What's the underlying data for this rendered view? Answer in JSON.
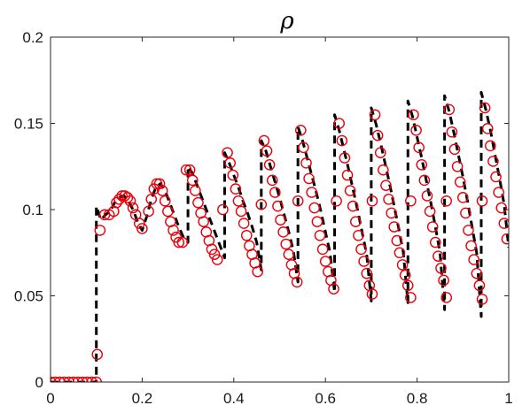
{
  "chart_data": {
    "type": "line",
    "title": "ρ",
    "xlabel": "",
    "ylabel": "",
    "xlim": [
      0,
      1
    ],
    "ylim": [
      0,
      0.2
    ],
    "x_ticks": [
      0,
      0.2,
      0.4,
      0.6,
      0.8,
      1
    ],
    "x_tick_labels": [
      "0",
      "0.2",
      "0.4",
      "0.6",
      "0.8",
      "1"
    ],
    "y_ticks": [
      0,
      0.05,
      0.1,
      0.15,
      0.2
    ],
    "y_tick_labels": [
      "0",
      "0.05",
      "0.1",
      "0.15",
      "0.2"
    ],
    "grid": false,
    "legend": "none",
    "colors": {
      "reference_line": "#000000",
      "markers": "#e8000b",
      "axes": "#262626"
    },
    "series": [
      {
        "style": "dashed line",
        "points": [
          [
            0.0,
            0.0
          ],
          [
            0.02,
            0.0
          ],
          [
            0.04,
            0.0
          ],
          [
            0.06,
            0.0
          ],
          [
            0.08,
            0.0
          ],
          [
            0.1,
            0.0
          ],
          [
            0.1,
            0.102
          ],
          [
            0.11,
            0.094
          ],
          [
            0.12,
            0.097
          ],
          [
            0.13,
            0.099
          ],
          [
            0.14,
            0.104
          ],
          [
            0.15,
            0.107
          ],
          [
            0.16,
            0.108
          ],
          [
            0.17,
            0.105
          ],
          [
            0.18,
            0.1
          ],
          [
            0.19,
            0.093
          ],
          [
            0.2,
            0.088
          ],
          [
            0.21,
            0.096
          ],
          [
            0.22,
            0.106
          ],
          [
            0.23,
            0.113
          ],
          [
            0.24,
            0.115
          ],
          [
            0.25,
            0.111
          ],
          [
            0.26,
            0.104
          ],
          [
            0.27,
            0.097
          ],
          [
            0.28,
            0.09
          ],
          [
            0.29,
            0.084
          ],
          [
            0.3,
            0.081
          ],
          [
            0.3,
            0.125
          ],
          [
            0.31,
            0.121
          ],
          [
            0.32,
            0.114
          ],
          [
            0.33,
            0.107
          ],
          [
            0.34,
            0.1
          ],
          [
            0.35,
            0.093
          ],
          [
            0.36,
            0.086
          ],
          [
            0.37,
            0.079
          ],
          [
            0.38,
            0.072
          ],
          [
            0.38,
            0.133
          ],
          [
            0.39,
            0.127
          ],
          [
            0.4,
            0.12
          ],
          [
            0.41,
            0.113
          ],
          [
            0.42,
            0.105
          ],
          [
            0.43,
            0.098
          ],
          [
            0.44,
            0.09
          ],
          [
            0.45,
            0.081
          ],
          [
            0.46,
            0.065
          ],
          [
            0.46,
            0.14
          ],
          [
            0.47,
            0.134
          ],
          [
            0.48,
            0.125
          ],
          [
            0.49,
            0.116
          ],
          [
            0.5,
            0.107
          ],
          [
            0.51,
            0.097
          ],
          [
            0.52,
            0.087
          ],
          [
            0.53,
            0.076
          ],
          [
            0.54,
            0.058
          ],
          [
            0.54,
            0.148
          ],
          [
            0.55,
            0.14
          ],
          [
            0.56,
            0.13
          ],
          [
            0.57,
            0.12
          ],
          [
            0.58,
            0.11
          ],
          [
            0.59,
            0.099
          ],
          [
            0.6,
            0.087
          ],
          [
            0.61,
            0.075
          ],
          [
            0.62,
            0.052
          ],
          [
            0.62,
            0.155
          ],
          [
            0.63,
            0.146
          ],
          [
            0.64,
            0.135
          ],
          [
            0.65,
            0.124
          ],
          [
            0.66,
            0.112
          ],
          [
            0.67,
            0.1
          ],
          [
            0.68,
            0.087
          ],
          [
            0.69,
            0.074
          ],
          [
            0.7,
            0.047
          ],
          [
            0.7,
            0.159
          ],
          [
            0.71,
            0.15
          ],
          [
            0.72,
            0.139
          ],
          [
            0.73,
            0.127
          ],
          [
            0.74,
            0.115
          ],
          [
            0.75,
            0.102
          ],
          [
            0.76,
            0.089
          ],
          [
            0.77,
            0.075
          ],
          [
            0.78,
            0.046
          ],
          [
            0.78,
            0.163
          ],
          [
            0.79,
            0.154
          ],
          [
            0.8,
            0.142
          ],
          [
            0.81,
            0.13
          ],
          [
            0.82,
            0.117
          ],
          [
            0.83,
            0.104
          ],
          [
            0.84,
            0.09
          ],
          [
            0.85,
            0.075
          ],
          [
            0.86,
            0.042
          ],
          [
            0.86,
            0.166
          ],
          [
            0.87,
            0.157
          ],
          [
            0.88,
            0.145
          ],
          [
            0.89,
            0.132
          ],
          [
            0.9,
            0.119
          ],
          [
            0.91,
            0.105
          ],
          [
            0.92,
            0.09
          ],
          [
            0.93,
            0.075
          ],
          [
            0.94,
            0.038
          ],
          [
            0.94,
            0.168
          ],
          [
            0.95,
            0.158
          ],
          [
            0.96,
            0.146
          ],
          [
            0.97,
            0.132
          ],
          [
            0.98,
            0.118
          ],
          [
            0.99,
            0.103
          ],
          [
            1.0,
            0.078
          ]
        ]
      },
      {
        "style": "open circle markers",
        "points": [
          [
            0.0,
            0.0
          ],
          [
            0.01,
            0.0
          ],
          [
            0.02,
            0.0
          ],
          [
            0.03,
            0.0
          ],
          [
            0.04,
            0.0
          ],
          [
            0.05,
            0.0
          ],
          [
            0.06,
            0.0
          ],
          [
            0.07,
            0.0
          ],
          [
            0.08,
            0.0
          ],
          [
            0.09,
            0.0
          ],
          [
            0.1,
            0.0
          ],
          [
            0.102,
            0.016
          ],
          [
            0.108,
            0.088
          ],
          [
            0.118,
            0.097
          ],
          [
            0.128,
            0.097
          ],
          [
            0.138,
            0.099
          ],
          [
            0.144,
            0.104
          ],
          [
            0.15,
            0.106
          ],
          [
            0.156,
            0.108
          ],
          [
            0.162,
            0.108
          ],
          [
            0.168,
            0.107
          ],
          [
            0.174,
            0.105
          ],
          [
            0.18,
            0.101
          ],
          [
            0.186,
            0.097
          ],
          [
            0.194,
            0.092
          ],
          [
            0.2,
            0.089
          ],
          [
            0.214,
            0.099
          ],
          [
            0.22,
            0.106
          ],
          [
            0.226,
            0.112
          ],
          [
            0.232,
            0.115
          ],
          [
            0.238,
            0.115
          ],
          [
            0.244,
            0.111
          ],
          [
            0.25,
            0.105
          ],
          [
            0.256,
            0.099
          ],
          [
            0.262,
            0.093
          ],
          [
            0.268,
            0.088
          ],
          [
            0.274,
            0.084
          ],
          [
            0.28,
            0.081
          ],
          [
            0.288,
            0.081
          ],
          [
            0.296,
            0.123
          ],
          [
            0.304,
            0.123
          ],
          [
            0.31,
            0.117
          ],
          [
            0.316,
            0.111
          ],
          [
            0.322,
            0.104
          ],
          [
            0.328,
            0.098
          ],
          [
            0.334,
            0.093
          ],
          [
            0.34,
            0.087
          ],
          [
            0.346,
            0.082
          ],
          [
            0.352,
            0.077
          ],
          [
            0.358,
            0.074
          ],
          [
            0.364,
            0.071
          ],
          [
            0.376,
            0.1
          ],
          [
            0.386,
            0.133
          ],
          [
            0.392,
            0.127
          ],
          [
            0.398,
            0.12
          ],
          [
            0.404,
            0.112
          ],
          [
            0.41,
            0.105
          ],
          [
            0.416,
            0.099
          ],
          [
            0.422,
            0.092
          ],
          [
            0.428,
            0.085
          ],
          [
            0.434,
            0.079
          ],
          [
            0.44,
            0.074
          ],
          [
            0.446,
            0.069
          ],
          [
            0.452,
            0.064
          ],
          [
            0.46,
            0.103
          ],
          [
            0.466,
            0.14
          ],
          [
            0.472,
            0.134
          ],
          [
            0.478,
            0.126
          ],
          [
            0.484,
            0.117
          ],
          [
            0.49,
            0.11
          ],
          [
            0.496,
            0.102
          ],
          [
            0.502,
            0.094
          ],
          [
            0.508,
            0.087
          ],
          [
            0.514,
            0.08
          ],
          [
            0.52,
            0.074
          ],
          [
            0.526,
            0.068
          ],
          [
            0.532,
            0.063
          ],
          [
            0.538,
            0.058
          ],
          [
            0.54,
            0.105
          ],
          [
            0.546,
            0.146
          ],
          [
            0.552,
            0.136
          ],
          [
            0.558,
            0.127
          ],
          [
            0.564,
            0.118
          ],
          [
            0.57,
            0.11
          ],
          [
            0.576,
            0.101
          ],
          [
            0.582,
            0.093
          ],
          [
            0.588,
            0.085
          ],
          [
            0.594,
            0.077
          ],
          [
            0.6,
            0.07
          ],
          [
            0.606,
            0.064
          ],
          [
            0.612,
            0.059
          ],
          [
            0.618,
            0.054
          ],
          [
            0.624,
            0.105
          ],
          [
            0.63,
            0.15
          ],
          [
            0.636,
            0.14
          ],
          [
            0.642,
            0.13
          ],
          [
            0.648,
            0.12
          ],
          [
            0.654,
            0.111
          ],
          [
            0.66,
            0.102
          ],
          [
            0.666,
            0.093
          ],
          [
            0.672,
            0.085
          ],
          [
            0.678,
            0.077
          ],
          [
            0.684,
            0.07
          ],
          [
            0.69,
            0.063
          ],
          [
            0.696,
            0.056
          ],
          [
            0.702,
            0.051
          ],
          [
            0.702,
            0.105
          ],
          [
            0.708,
            0.155
          ],
          [
            0.714,
            0.143
          ],
          [
            0.72,
            0.133
          ],
          [
            0.726,
            0.123
          ],
          [
            0.732,
            0.114
          ],
          [
            0.738,
            0.106
          ],
          [
            0.744,
            0.098
          ],
          [
            0.75,
            0.09
          ],
          [
            0.756,
            0.082
          ],
          [
            0.762,
            0.075
          ],
          [
            0.768,
            0.068
          ],
          [
            0.774,
            0.062
          ],
          [
            0.78,
            0.056
          ],
          [
            0.786,
            0.049
          ],
          [
            0.786,
            0.105
          ],
          [
            0.792,
            0.155
          ],
          [
            0.798,
            0.146
          ],
          [
            0.804,
            0.136
          ],
          [
            0.81,
            0.126
          ],
          [
            0.816,
            0.117
          ],
          [
            0.822,
            0.108
          ],
          [
            0.828,
            0.099
          ],
          [
            0.834,
            0.09
          ],
          [
            0.84,
            0.081
          ],
          [
            0.846,
            0.073
          ],
          [
            0.852,
            0.066
          ],
          [
            0.858,
            0.059
          ],
          [
            0.864,
            0.049
          ],
          [
            0.864,
            0.105
          ],
          [
            0.87,
            0.158
          ],
          [
            0.876,
            0.145
          ],
          [
            0.882,
            0.135
          ],
          [
            0.888,
            0.125
          ],
          [
            0.894,
            0.116
          ],
          [
            0.9,
            0.107
          ],
          [
            0.906,
            0.098
          ],
          [
            0.912,
            0.088
          ],
          [
            0.918,
            0.079
          ],
          [
            0.924,
            0.071
          ],
          [
            0.93,
            0.063
          ],
          [
            0.936,
            0.056
          ],
          [
            0.942,
            0.048
          ],
          [
            0.942,
            0.105
          ],
          [
            0.948,
            0.159
          ],
          [
            0.954,
            0.147
          ],
          [
            0.96,
            0.137
          ],
          [
            0.966,
            0.128
          ],
          [
            0.972,
            0.119
          ],
          [
            0.978,
            0.11
          ],
          [
            0.984,
            0.101
          ],
          [
            0.99,
            0.092
          ],
          [
            0.996,
            0.083
          ]
        ]
      }
    ]
  }
}
